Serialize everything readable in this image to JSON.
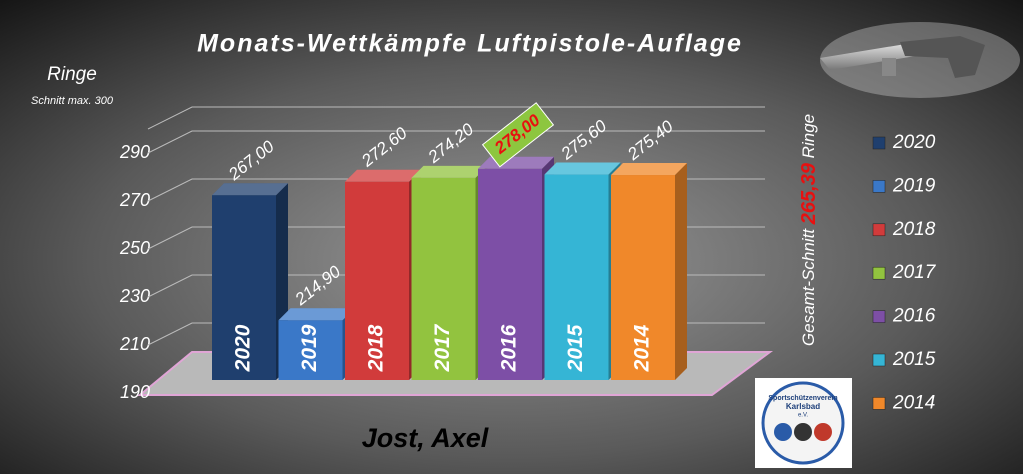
{
  "chart_data": {
    "type": "bar3d",
    "title": "Monats-Wettkämpfe Luftpistole-Auflage",
    "y_label": "Ringe",
    "y_sublabel": "Schnitt max. 300",
    "categories": [
      "2020",
      "2019",
      "2018",
      "2017",
      "2016",
      "2015",
      "2014"
    ],
    "values": [
      267.0,
      214.9,
      272.6,
      274.2,
      278.0,
      275.6,
      275.4
    ],
    "value_labels": [
      "267,00",
      "214,90",
      "272,60",
      "274,20",
      "278,00",
      "275,60",
      "275,40"
    ],
    "colors": [
      "#1f3f6e",
      "#3a78c8",
      "#d13b3b",
      "#92c33f",
      "#7d4fa6",
      "#35b5d5",
      "#f0882a"
    ],
    "ylim": [
      190,
      300
    ],
    "yticks": [
      190,
      210,
      230,
      250,
      270,
      290
    ],
    "grid": true,
    "legend": "right",
    "average_label": "Gesamt-Schnitt",
    "average_value_label": "265,39",
    "average_unit": "Ringe",
    "shooter": "Jost, Axel",
    "logo_text": [
      "Sportschützenverein",
      "Karlsbad",
      "e.V."
    ]
  }
}
